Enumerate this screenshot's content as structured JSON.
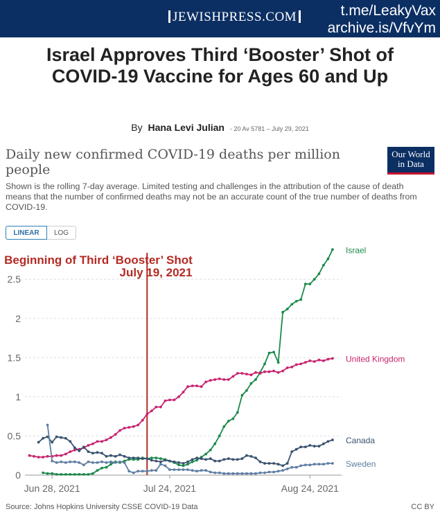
{
  "header": {
    "logo_text": "JEWISHPRESS.COM",
    "watermark_line1": "t.me/LeakyVax",
    "watermark_line2": "archive.is/VfvYm"
  },
  "article": {
    "headline": "Israel Approves Third ‘Booster’ Shot of COVID-19 Vaccine for Ages 60 and Up",
    "by": "By",
    "author": "Hana Levi Julian",
    "date": "- 20 Av 5781 – July 29, 2021"
  },
  "owid_logo": {
    "line1": "Our World",
    "line2": "in Data"
  },
  "scale_toggle": {
    "linear": "LINEAR",
    "log": "LOG",
    "selected": "LINEAR"
  },
  "footer": {
    "source": "Source: Johns Hopkins University CSSE COVID-19 Data",
    "license": "CC BY"
  },
  "colors": {
    "Israel": "#1b8a4a",
    "United Kingdom": "#c8226e",
    "Canada": "#3a5270",
    "Sweden": "#5f7ea3",
    "annotation": "#b42a23"
  },
  "chart_data": {
    "type": "line",
    "title": "Daily new confirmed COVID-19 deaths per million people",
    "subtitle": "Shown is the rolling 7-day average. Limited testing and challenges in the attribution of the cause of death means that the number of confirmed deaths may not be an accurate count of the true number of deaths from COVID-19.",
    "x_start": "2021-06-22",
    "x_end": "2021-08-31",
    "x_ticks": [
      "Jun 28, 2021",
      "Jul 24, 2021",
      "Aug 24, 2021"
    ],
    "x_tick_dates": [
      "2021-06-28",
      "2021-07-24",
      "2021-08-24"
    ],
    "ylim": [
      0,
      2.9
    ],
    "y_ticks": [
      0,
      0.5,
      1,
      1.5,
      2,
      2.5
    ],
    "y_tick_labels": [
      "0",
      "0.5",
      "1",
      "1.5",
      "2",
      "2.5"
    ],
    "grid": "horizontal dashed",
    "legend": "labels at line ends (right)",
    "annotation": {
      "date": "2021-07-19",
      "line1": "Beginning of Third ‘Booster’ Shot",
      "line2": "July 19, 2021"
    },
    "series": [
      {
        "name": "Israel",
        "values": [
          0.03,
          0.02,
          0.02,
          0.01,
          0.01,
          0.01,
          0.01,
          0.01,
          0.01,
          0.01,
          0.01,
          0.02,
          0.06,
          0.09,
          0.1,
          0.14,
          0.17,
          0.16,
          0.18,
          0.2,
          0.2,
          0.2,
          0.22,
          0.21,
          0.22,
          0.22,
          0.21,
          0.2,
          0.18,
          0.16,
          0.13,
          0.12,
          0.14,
          0.17,
          0.19,
          0.23,
          0.27,
          0.32,
          0.4,
          0.5,
          0.62,
          0.69,
          0.72,
          0.8,
          1.02,
          1.08,
          1.17,
          1.22,
          1.31,
          1.42,
          1.56,
          1.57,
          1.44,
          2.08,
          2.12,
          2.18,
          2.22,
          2.24,
          2.44,
          2.44,
          2.5,
          2.57,
          2.68,
          2.76,
          2.88
        ]
      },
      {
        "name": "United Kingdom",
        "values": [
          0.25,
          0.24,
          0.23,
          0.23,
          0.24,
          0.24,
          0.25,
          0.25,
          0.27,
          0.3,
          0.32,
          0.33,
          0.35,
          0.38,
          0.4,
          0.43,
          0.43,
          0.45,
          0.48,
          0.52,
          0.57,
          0.6,
          0.61,
          0.62,
          0.64,
          0.7,
          0.78,
          0.82,
          0.87,
          0.87,
          0.95,
          0.96,
          0.96,
          1.0,
          1.06,
          1.13,
          1.14,
          1.14,
          1.13,
          1.19,
          1.21,
          1.22,
          1.23,
          1.22,
          1.22,
          1.26,
          1.3,
          1.3,
          1.29,
          1.28,
          1.31,
          1.3,
          1.32,
          1.32,
          1.33,
          1.31,
          1.33,
          1.37,
          1.38,
          1.41,
          1.42,
          1.44,
          1.46,
          1.45,
          1.47,
          1.46,
          1.48,
          1.49
        ]
      },
      {
        "name": "Canada",
        "values": [
          0.42,
          0.47,
          0.49,
          0.42,
          0.49,
          0.48,
          0.47,
          0.43,
          0.35,
          0.31,
          0.36,
          0.3,
          0.28,
          0.29,
          0.28,
          0.24,
          0.25,
          0.24,
          0.26,
          0.24,
          0.22,
          0.22,
          0.22,
          0.21,
          0.21,
          0.19,
          0.18,
          0.17,
          0.19,
          0.18,
          0.17,
          0.16,
          0.15,
          0.17,
          0.2,
          0.22,
          0.21,
          0.2,
          0.21,
          0.18,
          0.18,
          0.2,
          0.21,
          0.2,
          0.2,
          0.21,
          0.25,
          0.24,
          0.22,
          0.17,
          0.15,
          0.15,
          0.15,
          0.14,
          0.12,
          0.15,
          0.3,
          0.33,
          0.36,
          0.36,
          0.38,
          0.37,
          0.37,
          0.4,
          0.43,
          0.45
        ]
      },
      {
        "name": "Sweden",
        "values": [
          0.64,
          0.18,
          0.16,
          0.17,
          0.16,
          0.17,
          0.17,
          0.16,
          0.13,
          0.17,
          0.16,
          0.16,
          0.17,
          0.16,
          0.17,
          0.16,
          0.17,
          0.16,
          0.05,
          0.03,
          0.05,
          0.05,
          0.05,
          0.06,
          0.06,
          0.14,
          0.12,
          0.07,
          0.07,
          0.07,
          0.07,
          0.07,
          0.06,
          0.05,
          0.06,
          0.06,
          0.04,
          0.03,
          0.03,
          0.02,
          0.02,
          0.02,
          0.02,
          0.02,
          0.02,
          0.02,
          0.02,
          0.03,
          0.03,
          0.04,
          0.04,
          0.05,
          0.06,
          0.08,
          0.1,
          0.1,
          0.12,
          0.13,
          0.13,
          0.14,
          0.14,
          0.14,
          0.15,
          0.15
        ]
      }
    ]
  }
}
